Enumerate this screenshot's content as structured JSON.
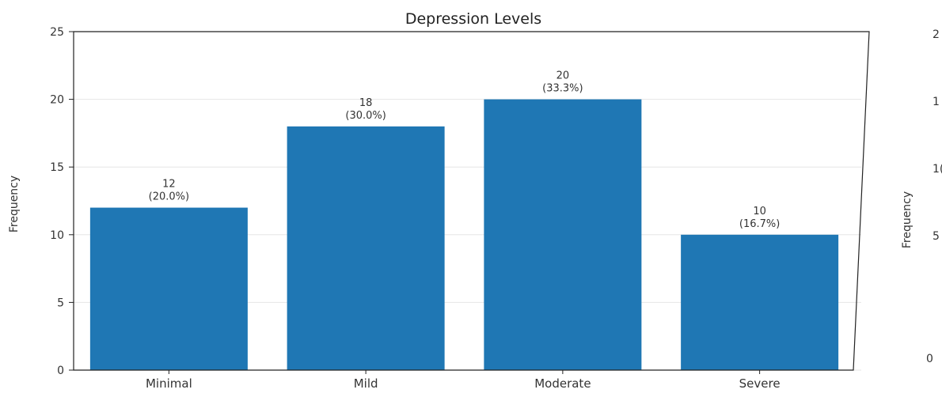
{
  "chart_data": {
    "type": "bar",
    "title": "Depression Levels",
    "xlabel": "",
    "ylabel": "Frequency",
    "categories": [
      "Minimal",
      "Mild",
      "Moderate",
      "Severe"
    ],
    "values": [
      12,
      18,
      20,
      10
    ],
    "data_labels": [
      [
        "12",
        "(20.0%)"
      ],
      [
        "18",
        "(30.0%)"
      ],
      [
        "20",
        "(33.3%)"
      ],
      [
        "10",
        "(16.7%)"
      ]
    ],
    "ylim": [
      0,
      25
    ],
    "yticks": [
      "0",
      "5",
      "10",
      "15",
      "20",
      "25"
    ],
    "grid": true,
    "bar_color": "#1f77b4"
  },
  "second_panel": {
    "ylabel": "Frequency",
    "tick_fragments": [
      "2",
      "1",
      "1(",
      "5",
      "0"
    ]
  }
}
